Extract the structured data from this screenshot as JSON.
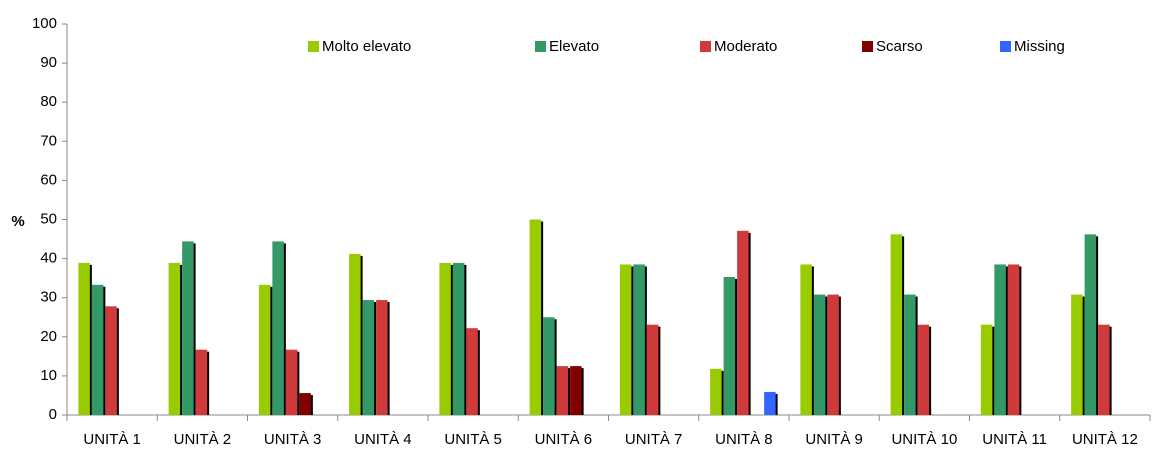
{
  "chart_data": {
    "type": "bar",
    "y_label": "%",
    "categories": [
      "UNITÀ 1",
      "UNITÀ 2",
      "UNITÀ 3",
      "UNITÀ 4",
      "UNITÀ 5",
      "UNITÀ 6",
      "UNITÀ 7",
      "UNITÀ 8",
      "UNITÀ 9",
      "UNITÀ 10",
      "UNITÀ 11",
      "UNITÀ 12"
    ],
    "series": [
      {
        "name": "Molto elevato",
        "color": "#99cc00",
        "values": [
          38.9,
          38.9,
          33.3,
          41.2,
          38.9,
          50,
          38.5,
          11.8,
          38.5,
          46.2,
          23.1,
          30.8
        ]
      },
      {
        "name": "Elevato",
        "color": "#339966",
        "values": [
          33.3,
          44.4,
          44.4,
          29.4,
          38.9,
          25,
          38.5,
          35.3,
          30.8,
          30.8,
          38.5,
          46.2
        ]
      },
      {
        "name": "Moderato",
        "color": "#d03a3a",
        "values": [
          27.8,
          16.7,
          16.7,
          29.4,
          22.2,
          12.5,
          23.1,
          47.1,
          30.8,
          23.1,
          38.5,
          23.1
        ]
      },
      {
        "name": "Scarso",
        "color": "#800000",
        "values": [
          0,
          0,
          5.6,
          0,
          0,
          12.5,
          0,
          0,
          0,
          0,
          0,
          0
        ]
      },
      {
        "name": "Missing",
        "color": "#3366ff",
        "values": [
          0,
          0,
          0,
          0,
          0,
          0,
          0,
          5.9,
          0,
          0,
          0,
          0
        ]
      }
    ],
    "ylim": [
      0,
      100
    ],
    "yticks": [
      0,
      10,
      20,
      30,
      40,
      50,
      60,
      70,
      80,
      90,
      100
    ],
    "grid": false,
    "legend": "top"
  }
}
